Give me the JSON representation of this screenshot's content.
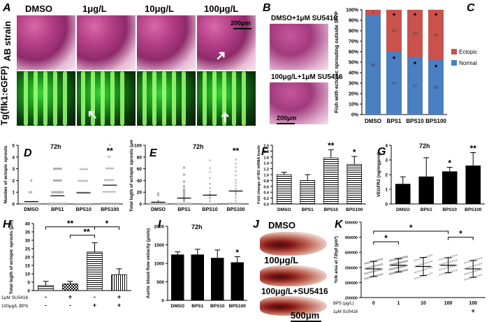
{
  "panel_A": {
    "label": "A",
    "columns": [
      "DMSO",
      "1μg/L",
      "10μg/L",
      "100μg/L"
    ],
    "row_labels": [
      "AB strain",
      "Tg(flk1:eGFP)"
    ],
    "scale": "200μm"
  },
  "panel_B": {
    "label": "B",
    "top_caption": "DMSO+1μM SU5416",
    "bottom_caption": "100μg/L+1μM SU5416",
    "scale": "200μm"
  },
  "panel_J": {
    "label": "J",
    "captions": [
      "DMSO",
      "100μg/L",
      "100μg/L+SU5416"
    ],
    "scale": "500μm"
  },
  "colors": {
    "ectopic": "#c9524d",
    "normal": "#4a7fc1",
    "bar_black": "#000000",
    "scatter_grey": "#b0b0b0"
  },
  "chart_data": [
    {
      "id": "C",
      "label": "C",
      "type": "bar",
      "stacked": true,
      "categories": [
        "DMSO",
        "BPS1",
        "BPS10",
        "BPS100"
      ],
      "ylabel": "Fish with ectopic sprouting outside SIVP",
      "yticks": [
        "0%",
        "10%",
        "20%",
        "30%",
        "40%",
        "50%",
        "60%",
        "70%",
        "80%",
        "90%",
        "100%"
      ],
      "ylim": [
        0,
        100
      ],
      "series": [
        {
          "name": "Normal",
          "values": [
            95,
            60,
            55,
            52
          ],
          "counts": [
            "38",
            "24",
            "27",
            "26"
          ]
        },
        {
          "name": "Ectopic",
          "values": [
            5,
            40,
            45,
            48
          ],
          "counts": [
            "2",
            "16",
            "22",
            "24"
          ]
        }
      ],
      "stars_normal": [
        false,
        true,
        true,
        true
      ],
      "stars_ectopic": [
        false,
        true,
        true,
        true
      ],
      "legend_position": "right"
    },
    {
      "id": "D",
      "label": "D",
      "type": "scatter",
      "title": "72h",
      "categories": [
        "DMSO",
        "BPS1",
        "BPS10",
        "BPS100"
      ],
      "ylabel": "Number of ectopic sprouts",
      "yticks": [
        "0",
        "1",
        "2",
        "3",
        "4",
        "5"
      ],
      "ylim": [
        0,
        5
      ],
      "points": [
        [
          0,
          0,
          0,
          0,
          0,
          0,
          0,
          0,
          0,
          0,
          0,
          0,
          0,
          0,
          0,
          0,
          0,
          0,
          0,
          0,
          0,
          0,
          0,
          0,
          0,
          0,
          0,
          0,
          0,
          0,
          0,
          0,
          0,
          0,
          1,
          1,
          2
        ],
        [
          0,
          0,
          0,
          0,
          0,
          0,
          0,
          0,
          0,
          0,
          0,
          0,
          0,
          0,
          0,
          0,
          0,
          0,
          0,
          0,
          1,
          1,
          1,
          1,
          1,
          1,
          1,
          2,
          2,
          2,
          2,
          2,
          3,
          3,
          3,
          3,
          3
        ],
        [
          0,
          0,
          0,
          0,
          0,
          0,
          0,
          0,
          0,
          0,
          0,
          0,
          0,
          0,
          0,
          1,
          1,
          1,
          1,
          1,
          1,
          1,
          1,
          2,
          2,
          2,
          2,
          2,
          2,
          3,
          3,
          3,
          3,
          3
        ],
        [
          0,
          0,
          0,
          0,
          0,
          0,
          0,
          0,
          0,
          0,
          0,
          0,
          0,
          1,
          1,
          1,
          1,
          1,
          1,
          1,
          1,
          2,
          2,
          2,
          2,
          2,
          2,
          3,
          3,
          3,
          3,
          3,
          4,
          4,
          5
        ]
      ],
      "means": [
        0.2,
        0.7,
        0.95,
        1.6
      ],
      "markers": [
        "circle",
        "square",
        "triangle",
        "triangle-down"
      ],
      "significance": [
        "",
        "",
        "",
        "**"
      ]
    },
    {
      "id": "E",
      "label": "E",
      "type": "scatter",
      "title": "72h",
      "categories": [
        "DMSO",
        "BPS1",
        "BPS10",
        "BPS100"
      ],
      "ylabel": "Total legth of ectopic sprouts (μm)",
      "yticks": [
        "0",
        "20",
        "40",
        "60",
        "80",
        "100"
      ],
      "ylim": [
        0,
        100
      ],
      "points": [
        [
          0,
          0,
          0,
          0,
          0,
          0,
          0,
          0,
          0,
          0,
          0,
          0,
          0,
          0,
          0,
          5,
          15,
          18
        ],
        [
          0,
          0,
          0,
          0,
          0,
          0,
          0,
          0,
          0,
          0,
          5,
          8,
          10,
          12,
          15,
          18,
          20,
          22,
          25,
          30,
          38,
          50,
          62
        ],
        [
          0,
          0,
          0,
          0,
          0,
          0,
          0,
          0,
          0,
          5,
          10,
          12,
          15,
          18,
          22,
          28,
          35,
          45,
          55,
          62,
          75
        ],
        [
          0,
          0,
          0,
          0,
          0,
          0,
          0,
          0,
          5,
          10,
          15,
          18,
          20,
          25,
          30,
          35,
          40,
          48,
          55,
          62,
          68,
          75
        ]
      ],
      "means": [
        3,
        10,
        15,
        22
      ],
      "markers": [
        "circle",
        "square",
        "triangle",
        "triangle-down"
      ],
      "significance": [
        "",
        "",
        "",
        "**"
      ]
    },
    {
      "id": "F",
      "label": "F",
      "type": "bar",
      "categories": [
        "DMSO",
        "BPS1",
        "BPS10",
        "BPS100"
      ],
      "ylabel": "Fold change of flt1 mRNA levels",
      "yticks": [
        "0.0",
        "0.2",
        "0.4",
        "0.6",
        "0.8",
        "1.0",
        "1.2",
        "1.4",
        "1.6",
        "1.8",
        "2.0"
      ],
      "ylim": [
        0,
        2.0
      ],
      "values": [
        1.0,
        0.8,
        1.57,
        1.35
      ],
      "errors": [
        0.08,
        0.2,
        0.28,
        0.27
      ],
      "significance": [
        "",
        "",
        "**",
        "*"
      ],
      "pattern": "hatched"
    },
    {
      "id": "G",
      "label": "G",
      "type": "bar",
      "title": "72h",
      "categories": [
        "DMSO",
        "BPS1",
        "BPS10",
        "BPS100"
      ],
      "ylabel": "VEGFR2 (ng/mgprot)",
      "yticks": [
        "0",
        "1",
        "2",
        "3",
        "4"
      ],
      "ylim": [
        0,
        4
      ],
      "values": [
        1.35,
        1.85,
        2.2,
        2.6
      ],
      "errors": [
        0.5,
        1.3,
        0.3,
        0.9
      ],
      "significance": [
        "",
        "",
        "*",
        "**"
      ]
    },
    {
      "id": "H",
      "label": "H",
      "type": "bar",
      "categories": [
        "",
        "",
        "",
        ""
      ],
      "ylabel": "Total legth of ectopic sprouts (μm)",
      "yticks": [
        "0",
        "5",
        "10",
        "15",
        "20",
        "25",
        "30",
        "35",
        "40"
      ],
      "ylim": [
        0,
        40
      ],
      "values": [
        3,
        4,
        23,
        9.5
      ],
      "errors": [
        2.5,
        1.5,
        5.5,
        3.5
      ],
      "patterns": [
        "hatch-h",
        "checker",
        "hatch-h",
        "hatch-v"
      ],
      "row_labels": [
        "1μM SU5416",
        "100μg/L BPS"
      ],
      "su5416": [
        "-",
        "+",
        "-",
        "+"
      ],
      "bps": [
        "-",
        "-",
        "+",
        "+"
      ],
      "brackets": [
        {
          "from": 0,
          "to": 2,
          "label": "**"
        },
        {
          "from": 1,
          "to": 2,
          "label": "**"
        },
        {
          "from": 2,
          "to": 3,
          "label": "*"
        }
      ]
    },
    {
      "id": "I",
      "label": "I",
      "type": "bar",
      "title": "72h",
      "categories": [
        "DMSO",
        "BPS1",
        "BPS10",
        "BPS100"
      ],
      "ylabel": "Aortic blood flow velocity (μm/s)",
      "yticks": [
        "0",
        "500",
        "1000",
        "1500",
        "2000"
      ],
      "ylim": [
        0,
        2000
      ],
      "values": [
        1230,
        1230,
        1140,
        1020
      ],
      "errors": [
        80,
        150,
        220,
        160
      ],
      "significance": [
        "",
        "",
        "",
        "*"
      ]
    },
    {
      "id": "K",
      "label": "K",
      "type": "scatter",
      "categories": [
        "0",
        "1",
        "10",
        "100",
        "100"
      ],
      "ylabel": "Yolk area at 72hpf (μm²)",
      "yticks": [
        "250000",
        "300000",
        "350000",
        "400000",
        "450000",
        "500000"
      ],
      "ylim": [
        250000,
        500000
      ],
      "means": [
        345000,
        357000,
        353000,
        357000,
        345000
      ],
      "errors": [
        25000,
        22000,
        30000,
        25000,
        28000
      ],
      "markers": [
        "circle",
        "square",
        "triangle",
        "triangle-down",
        "diamond"
      ],
      "row_labels": [
        "BPS (μg/L)",
        "1μM SU5416"
      ],
      "su5416": [
        "",
        "",
        "",
        "",
        "+"
      ],
      "brackets": [
        {
          "from": 0,
          "to": 1,
          "label": "*"
        },
        {
          "from": 0,
          "to": 3,
          "label": "*"
        },
        {
          "from": 3,
          "to": 4,
          "label": "*"
        }
      ]
    }
  ]
}
